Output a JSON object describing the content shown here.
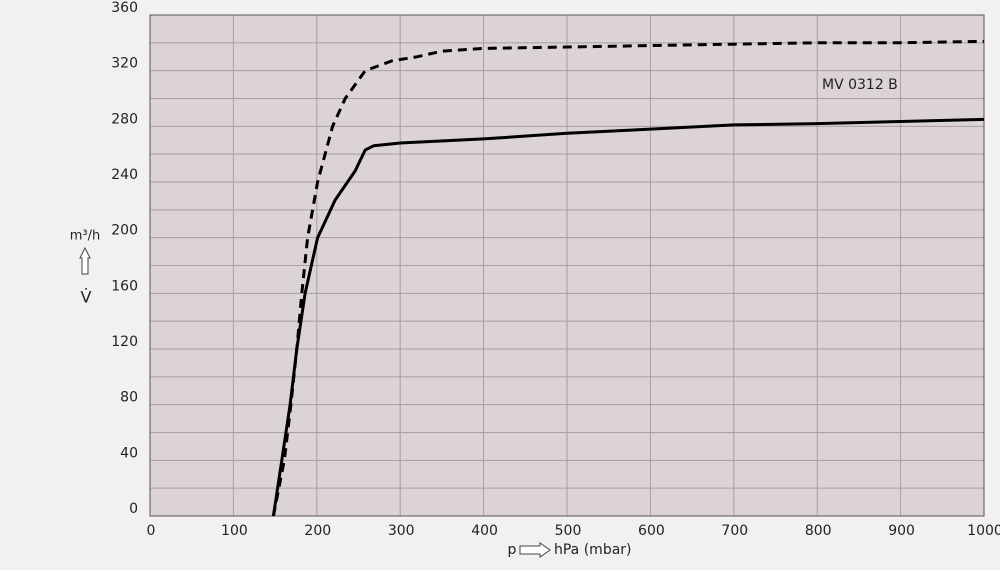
{
  "chart_data": {
    "type": "line",
    "ylabel": "m³/h",
    "ylabel_symbol": "V̇",
    "xlabel_symbol": "p",
    "xlabel": "hPa (mbar)",
    "annotation": "MV 0312 B",
    "xlim": [
      0,
      1000
    ],
    "xticks": [
      0,
      100,
      200,
      300,
      400,
      500,
      600,
      700,
      800,
      900,
      1000
    ],
    "ylim": [
      0,
      360
    ],
    "yticks": [
      0,
      40,
      80,
      120,
      160,
      200,
      240,
      280,
      320,
      360
    ],
    "yminorticks": [
      20,
      60,
      100,
      140,
      180,
      220,
      260,
      300,
      340
    ],
    "grid": true,
    "series": [
      {
        "color": "#000000",
        "style": "solid",
        "x": [
          148,
          158,
          168,
          176,
          186,
          201,
          222,
          246,
          258,
          268,
          300,
          400,
          500,
          600,
          700,
          800,
          900,
          1000
        ],
        "values": [
          0,
          40,
          80,
          120,
          160,
          200,
          227,
          248,
          263,
          266,
          268,
          271,
          275,
          278,
          281,
          282,
          283.5,
          285
        ]
      },
      {
        "color": "#000000",
        "style": "dashed",
        "x": [
          148,
          161,
          169,
          176,
          182,
          189,
          201,
          219,
          234,
          258,
          290,
          320,
          350,
          400,
          500,
          600,
          700,
          800,
          900,
          1000
        ],
        "values": [
          0,
          40,
          80,
          120,
          160,
          200,
          240,
          280,
          300,
          320,
          327,
          330,
          334,
          336,
          337,
          338,
          339,
          340,
          340,
          341
        ]
      }
    ]
  }
}
